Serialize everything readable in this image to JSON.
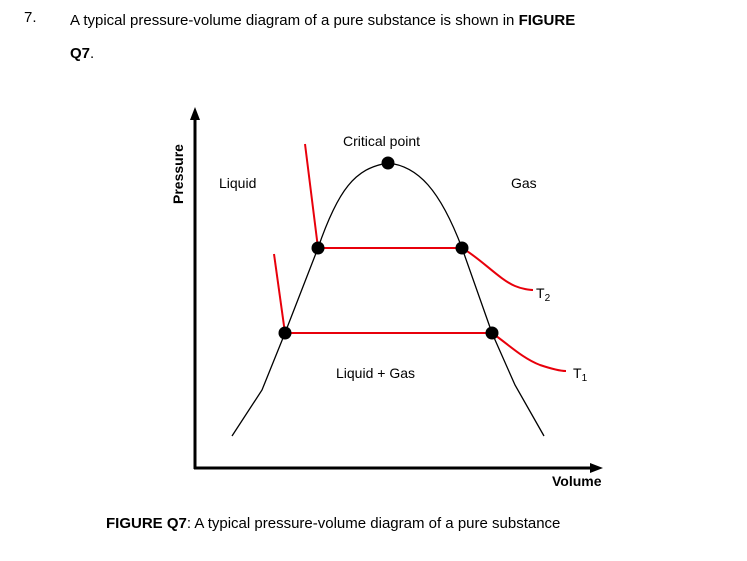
{
  "question": {
    "number": "7.",
    "text_prefix": "A typical pressure-volume diagram of a pure substance is shown in ",
    "figure_ref_line1": "FIGURE",
    "figure_ref_line2": "Q7",
    "text_suffix": "."
  },
  "diagram": {
    "y_axis_label": "Pressure",
    "x_axis_label": "Volume",
    "labels": {
      "critical_point": "Critical point",
      "liquid": "Liquid",
      "gas": "Gas",
      "liquid_gas": "Liquid + Gas",
      "t2_main": "T",
      "t2_sub": "2",
      "t1_main": "T",
      "t1_sub": "1"
    },
    "colors": {
      "dome": "#000000",
      "isotherm": "#e8000b",
      "axis": "#000000",
      "points": "#000000"
    }
  },
  "caption": {
    "prefix": "FIGURE Q7",
    "text": ": A typical pressure-volume diagram of a pure substance"
  }
}
